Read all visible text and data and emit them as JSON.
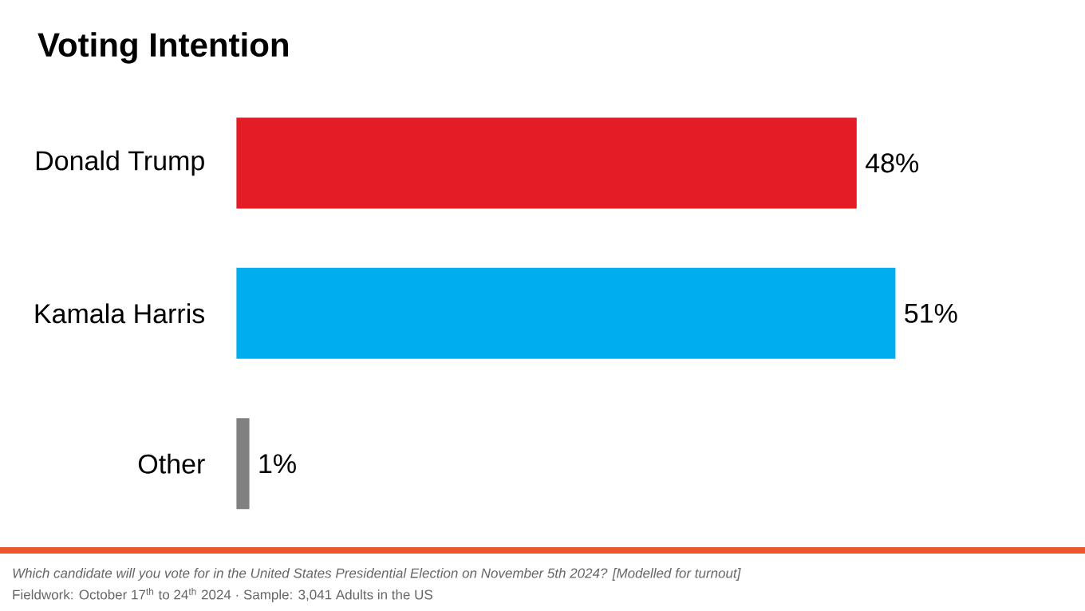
{
  "chart_data": {
    "type": "bar",
    "orientation": "horizontal",
    "title": "Voting Intention",
    "categories": [
      "Donald Trump",
      "Kamala Harris",
      "Other"
    ],
    "values": [
      48,
      51,
      1
    ],
    "colors": [
      "#e31c25",
      "#00aeef",
      "#808080"
    ],
    "value_labels": [
      "48%",
      "51%",
      "1%"
    ],
    "annotations": [
      "Which candidate will you vote for in the United States Presidential Election on November 5th 2024? [Modelled for turnout]",
      "Fieldwork: October 17$^{th}$ to 24$^{th}$ 2024 · Sample: 3,041 Adults in the US"
    ]
  }
}
